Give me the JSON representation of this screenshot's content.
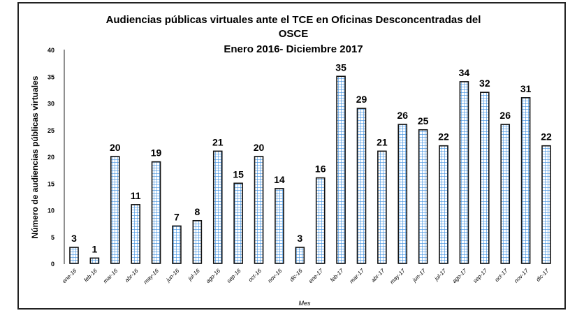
{
  "chart_data": {
    "type": "bar",
    "title": [
      "Audiencias públicas virtuales ante el TCE en Oficinas Desconcentradas del",
      "OSCE",
      "Enero 2016- Diciembre 2017"
    ],
    "xlabel": "Mes",
    "ylabel": "Número de audiencias públicas virtuales",
    "ylim": [
      0,
      40
    ],
    "yticks": [
      0,
      5,
      10,
      15,
      20,
      25,
      30,
      35,
      40
    ],
    "categories": [
      "ene-16",
      "feb-16",
      "mar-16",
      "abr-16",
      "may-16",
      "jun-16",
      "jul-16",
      "ago-16",
      "sep-16",
      "oct-16",
      "nov-16",
      "dic-16",
      "ene-17",
      "feb-17",
      "mar-17",
      "abr-17",
      "may-17",
      "jun-17",
      "jul-17",
      "ago-17",
      "sep-17",
      "oct-17",
      "nov-17",
      "dic-17"
    ],
    "values": [
      3,
      1,
      20,
      11,
      19,
      7,
      8,
      21,
      15,
      20,
      14,
      3,
      16,
      35,
      29,
      21,
      26,
      25,
      22,
      34,
      32,
      26,
      31,
      22
    ],
    "grid": false,
    "bar_color": "#3d8fe0"
  }
}
